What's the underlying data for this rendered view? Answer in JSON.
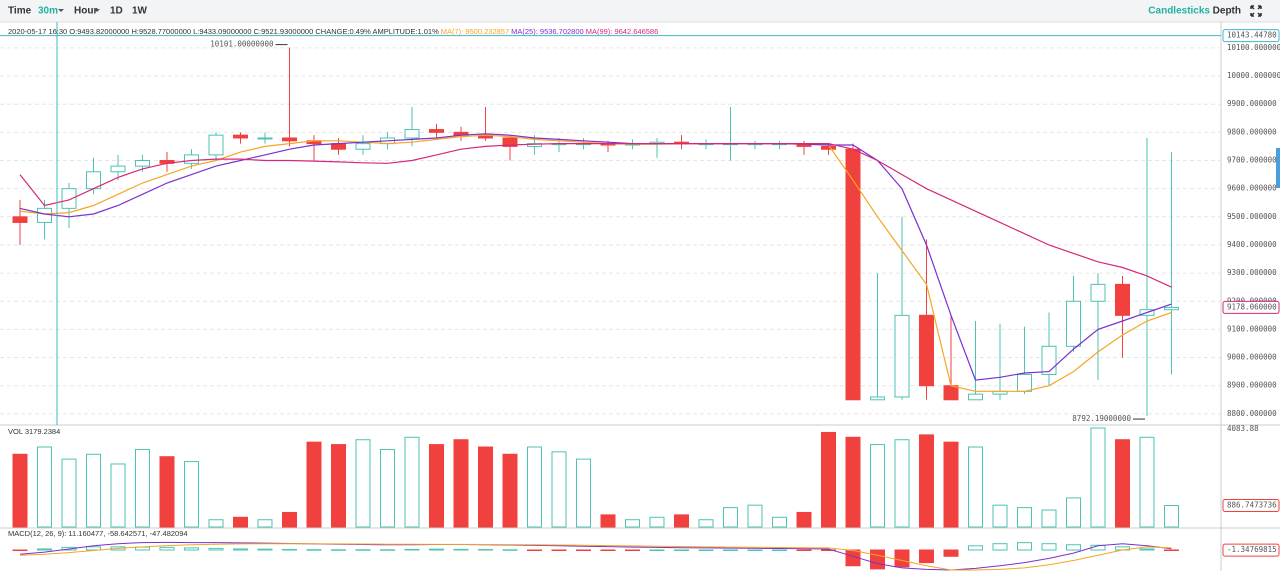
{
  "toolbar": {
    "left": [
      "Time",
      "30m",
      "Hour",
      "1D",
      "1W"
    ],
    "right": [
      "Candlesticks",
      "Depth"
    ]
  },
  "chart_data": [
    {
      "type": "candlestick",
      "info": "2020-05-17 16:30  O:9493.82000000 H:9528.77000000 L:9433.09000000 C:9521.93000000 CHANGE:0.49% AMPLITUDE:1.01%",
      "open": [
        9500,
        9480,
        9530,
        9600,
        9660,
        9680,
        9700,
        9690,
        9720,
        9790,
        9780,
        9780,
        9770,
        9760,
        9740,
        9760,
        9780,
        9810,
        9800,
        9790,
        9780,
        9750,
        9760,
        9760,
        9760,
        9755,
        9760,
        9765,
        9760,
        9760,
        9760,
        9760,
        9760,
        9750,
        9740,
        8850,
        8860,
        9150,
        8900,
        8850,
        8870,
        8880,
        8940,
        9040,
        9200,
        9260,
        9150,
        9170
      ],
      "high": [
        9560,
        9560,
        9620,
        9710,
        9720,
        9720,
        9730,
        9740,
        9800,
        9800,
        9800,
        10101,
        9790,
        9780,
        9790,
        9800,
        9890,
        9830,
        9820,
        9890,
        9790,
        9790,
        9780,
        9780,
        9770,
        9775,
        9780,
        9790,
        9775,
        9890,
        9770,
        9770,
        9770,
        9760,
        9760,
        9300,
        9500,
        9420,
        9150,
        9130,
        9120,
        9110,
        9160,
        9290,
        9300,
        9290,
        9780,
        9730
      ],
      "low": [
        9400,
        9420,
        9460,
        9580,
        9630,
        9660,
        9660,
        9670,
        9700,
        9760,
        9760,
        9750,
        9700,
        9720,
        9720,
        9740,
        9750,
        9780,
        9770,
        9770,
        9700,
        9720,
        9730,
        9740,
        9730,
        9740,
        9710,
        9740,
        9740,
        9700,
        9740,
        9740,
        9720,
        9720,
        8850,
        8850,
        8850,
        8850,
        8850,
        8850,
        8850,
        8870,
        8900,
        9020,
        8920,
        9000,
        8792.19,
        8940
      ],
      "close": [
        9480,
        9530,
        9600,
        9660,
        9680,
        9700,
        9690,
        9720,
        9790,
        9780,
        9780,
        9770,
        9760,
        9740,
        9760,
        9780,
        9810,
        9800,
        9790,
        9780,
        9750,
        9760,
        9760,
        9760,
        9755,
        9760,
        9765,
        9760,
        9760,
        9760,
        9760,
        9760,
        9750,
        9740,
        8850,
        8860,
        9150,
        8900,
        8850,
        8870,
        8880,
        8940,
        9040,
        9200,
        9260,
        9150,
        9170,
        9178.06
      ],
      "up_color": "#4cc3b3",
      "down_color": "#f0413f",
      "series": [
        {
          "name": "MA(7): 9500.232857",
          "color": "#f5a623",
          "values": [
            9520,
            9510,
            9515,
            9540,
            9580,
            9620,
            9650,
            9680,
            9700,
            9730,
            9750,
            9760,
            9770,
            9770,
            9765,
            9760,
            9765,
            9775,
            9785,
            9790,
            9785,
            9775,
            9770,
            9765,
            9760,
            9758,
            9758,
            9760,
            9760,
            9760,
            9760,
            9760,
            9758,
            9755,
            9630,
            9500,
            9380,
            9260,
            8900,
            8880,
            8880,
            8880,
            8900,
            8950,
            9020,
            9080,
            9130,
            9160
          ]
        },
        {
          "name": "MA(25): 9536.702800",
          "color": "#7b2fd0",
          "values": [
            9530,
            9510,
            9500,
            9510,
            9540,
            9580,
            9620,
            9650,
            9680,
            9700,
            9720,
            9740,
            9755,
            9760,
            9765,
            9770,
            9775,
            9780,
            9790,
            9795,
            9790,
            9780,
            9775,
            9770,
            9765,
            9760,
            9760,
            9760,
            9760,
            9760,
            9760,
            9760,
            9758,
            9755,
            9755,
            9700,
            9600,
            9400,
            9150,
            8920,
            8930,
            8945,
            8950,
            9030,
            9100,
            9130,
            9160,
            9190
          ]
        },
        {
          "name": "MA(99): 9642.646586",
          "color": "#d6287a",
          "values": [
            9650,
            9540,
            9560,
            9600,
            9640,
            9670,
            9690,
            9700,
            9705,
            9705,
            9700,
            9700,
            9698,
            9695,
            9692,
            9690,
            9700,
            9720,
            9740,
            9750,
            9755,
            9758,
            9760,
            9760,
            9760,
            9760,
            9760,
            9760,
            9760,
            9760,
            9760,
            9760,
            9760,
            9760,
            9740,
            9700,
            9650,
            9600,
            9560,
            9520,
            9480,
            9440,
            9400,
            9370,
            9340,
            9320,
            9290,
            9250
          ]
        }
      ],
      "ylim": [
        8764,
        10192
      ],
      "yticks": [
        {
          "value": 8800,
          "label": "8800.000000"
        },
        {
          "value": 8900,
          "label": "8900.000000"
        },
        {
          "value": 9000,
          "label": "9000.000000"
        },
        {
          "value": 9100,
          "label": "9100.000000"
        },
        {
          "value": 9200,
          "label": "9200.000000"
        },
        {
          "value": 9300,
          "label": "9300.000000"
        },
        {
          "value": 9400,
          "label": "9400.000000"
        },
        {
          "value": 9500,
          "label": "9500.000000"
        },
        {
          "value": 9600,
          "label": "9600.000000"
        },
        {
          "value": 9700,
          "label": "9700.000000"
        },
        {
          "value": 9800,
          "label": "9800.000000"
        },
        {
          "value": 9900,
          "label": "9900.000000"
        },
        {
          "value": 10000,
          "label": "10000.000000"
        },
        {
          "value": 10100,
          "label": "10100.000000"
        }
      ],
      "grid": true,
      "annotations": [
        "10101.00000000",
        "8792.19000000"
      ],
      "crosshair": {
        "value": 10143.4478,
        "label": "10143.44780"
      },
      "close_label": "9178.060000"
    },
    {
      "type": "volume",
      "title": "VOL 3179.2384",
      "values": [
        3000,
        3300,
        2800,
        3000,
        2600,
        3200,
        2900,
        2700,
        300,
        400,
        300,
        600,
        3500,
        3400,
        3600,
        3200,
        3700,
        3400,
        3600,
        3300,
        3000,
        3300,
        3100,
        2800,
        500,
        300,
        400,
        500,
        300,
        800,
        900,
        400,
        600,
        3900,
        3700,
        3400,
        3600,
        3800,
        3500,
        3300,
        900,
        800,
        700,
        1200,
        4083.88,
        3600,
        3700,
        886.7473736
      ],
      "ylim": [
        0,
        4083.88
      ],
      "yticks": [
        4083.88
      ]
    },
    {
      "type": "macd",
      "title": "MACD(12, 26, 9): 11.160477, -58.642571, -47.482094",
      "values": [
        -5,
        10,
        25,
        30,
        30,
        28,
        25,
        20,
        15,
        10,
        8,
        5,
        3,
        2,
        2,
        2,
        5,
        8,
        6,
        4,
        2,
        -2,
        -3,
        -2,
        -1,
        -1,
        0,
        0,
        0,
        0,
        0,
        0,
        -1,
        -2,
        -150,
        -180,
        -160,
        -120,
        -60,
        40,
        60,
        70,
        60,
        50,
        45,
        30,
        10,
        -1.34769815
      ],
      "series": [
        {
          "color": "#7b2fd0",
          "values": [
            -40,
            -20,
            10,
            40,
            60,
            70,
            72,
            70,
            70,
            68,
            66,
            62,
            58,
            55,
            52,
            50,
            50,
            52,
            52,
            50,
            48,
            44,
            40,
            36,
            32,
            28,
            25,
            22,
            20,
            18,
            16,
            14,
            12,
            10,
            -60,
            -130,
            -170,
            -185,
            -190,
            -175,
            -150,
            -120,
            -80,
            -30,
            40,
            60,
            40,
            12
          ]
        },
        {
          "color": "#f5a623",
          "values": [
            -50,
            -40,
            -25,
            -5,
            15,
            30,
            42,
            50,
            55,
            58,
            60,
            60,
            59,
            58,
            57,
            55,
            54,
            53,
            53,
            52,
            51,
            50,
            48,
            45,
            42,
            39,
            36,
            33,
            30,
            28,
            26,
            24,
            22,
            20,
            -5,
            -50,
            -100,
            -150,
            -190,
            -190,
            -185,
            -170,
            -140,
            -100,
            -50,
            0,
            30,
            20
          ]
        }
      ],
      "ylim": [
        -200,
        200
      ]
    }
  ]
}
